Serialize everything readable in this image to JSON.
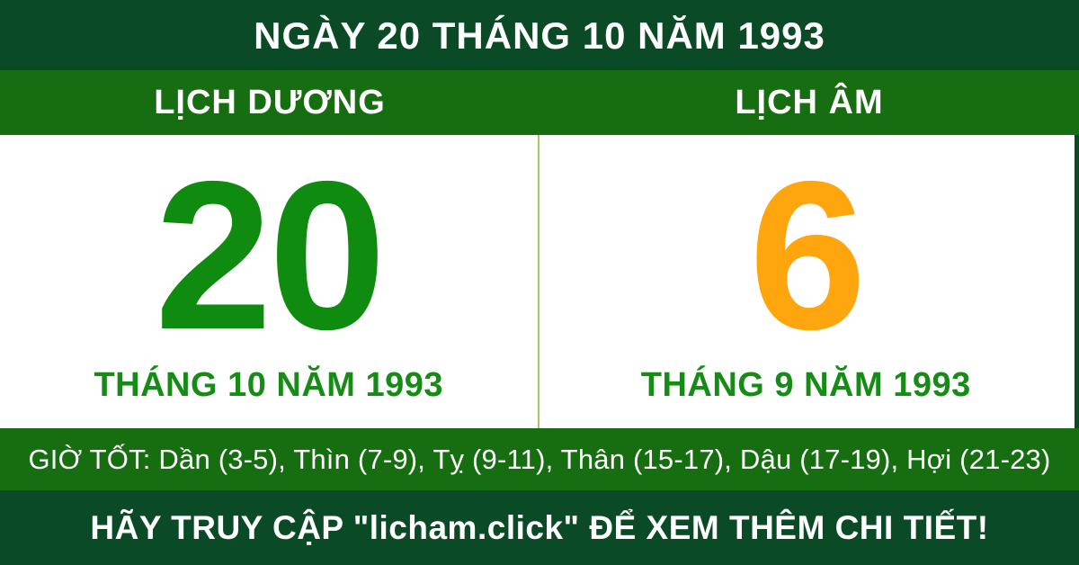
{
  "header": {
    "title": "NGÀY 20 THÁNG 10 NĂM 1993"
  },
  "tabs": {
    "solar_label": "LỊCH DƯƠNG",
    "lunar_label": "LỊCH ÂM"
  },
  "solar": {
    "day": "20",
    "month_year": "THÁNG 10 NĂM 1993"
  },
  "lunar": {
    "day": "6",
    "month_year": "THÁNG 9 NĂM 1993"
  },
  "good_hours": {
    "text": "GIỜ TỐT: Dần (3-5), Thìn (7-9), Tỵ (9-11), Thân (15-17), Dậu (17-19), Hợi (21-23)"
  },
  "footer": {
    "text": "HÃY TRUY CẬP \"licham.click\" ĐỂ XEM THÊM CHI TIẾT!"
  },
  "colors": {
    "dark_green": "#0b4a26",
    "medium_green": "#166e10",
    "day_green": "#0f8c0f",
    "text_green": "#168c16",
    "orange": "#ffa50d",
    "divider_green": "#9ccc65",
    "white": "#ffffff"
  }
}
